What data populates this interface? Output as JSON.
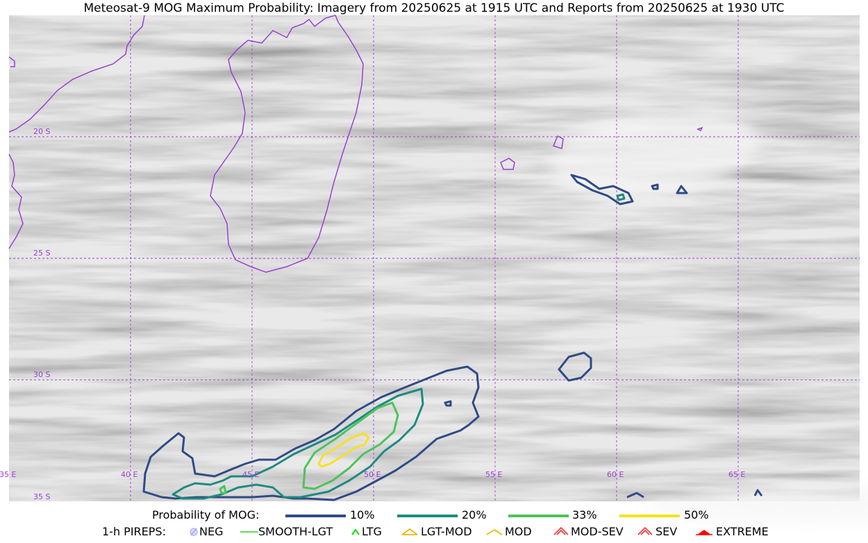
{
  "title": "Meteosat-9 MOG Maximum Probability: Imagery from 20250625 at 1915 UTC and Reports from 20250625 at 1930 UTC",
  "map": {
    "lat_labels": [
      "20 S",
      "25 S",
      "30 S",
      "35 S"
    ],
    "lon_labels": [
      "35 E",
      "40 E",
      "45 E",
      "50 E",
      "55 E",
      "60 E",
      "65 E"
    ],
    "coast_color": "#9b3fd0",
    "grid_color": "#9b3fd0"
  },
  "legend": {
    "prob_title": "Probability of MOG:",
    "prob_levels": [
      {
        "label": "10%",
        "color": "#2f4a85"
      },
      {
        "label": "20%",
        "color": "#1f8a80"
      },
      {
        "label": "33%",
        "color": "#4cc35a"
      },
      {
        "label": "50%",
        "color": "#f6e21e"
      }
    ],
    "pirep_title": "1-h PIREPS:",
    "pireps": [
      {
        "label": "NEG",
        "icon": "neg-circle-icon",
        "color": "#b8b8ff"
      },
      {
        "label": "SMOOTH-LGT",
        "icon": "line-icon",
        "color": "#32cd32"
      },
      {
        "label": "LTG",
        "icon": "caret-icon",
        "color": "#00dd00"
      },
      {
        "label": "LGT-MOD",
        "icon": "double-caret-icon",
        "color": "#f2b800"
      },
      {
        "label": "MOD",
        "icon": "caret-icon",
        "color": "#f2b800"
      },
      {
        "label": "MOD-SEV",
        "icon": "double-caret-icon",
        "color": "#ff3030"
      },
      {
        "label": "SEV",
        "icon": "double-caret-icon",
        "color": "#ff3030"
      },
      {
        "label": "EXTREME",
        "icon": "filled-caret-icon",
        "color": "#ff0000"
      }
    ]
  }
}
